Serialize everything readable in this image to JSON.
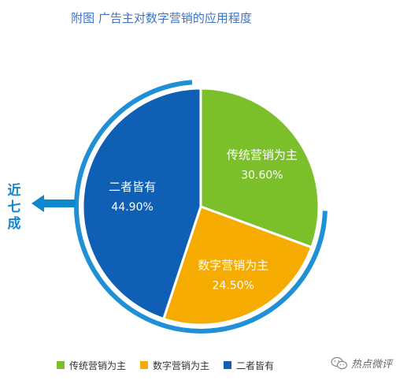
{
  "chart_data": {
    "type": "pie",
    "title": "附图 广告主对数字营销的应用程度",
    "slices": [
      {
        "label": "传统营销为主",
        "value": 30.6,
        "value_label": "30.60%",
        "color": "#7bbf2a"
      },
      {
        "label": "数字营销为主",
        "value": 24.5,
        "value_label": "24.50%",
        "color": "#f6ab00"
      },
      {
        "label": "二者皆有",
        "value": 44.9,
        "value_label": "44.90%",
        "color": "#0f5fb4"
      }
    ],
    "legend_position": "bottom",
    "ring_color": "#1f8fd6"
  },
  "annotation": {
    "text_chars": [
      "近",
      "七",
      "成"
    ],
    "arrow_color": "#0f87cc"
  },
  "watermark": {
    "text": "热点微评",
    "icon": "wechat-icon"
  }
}
